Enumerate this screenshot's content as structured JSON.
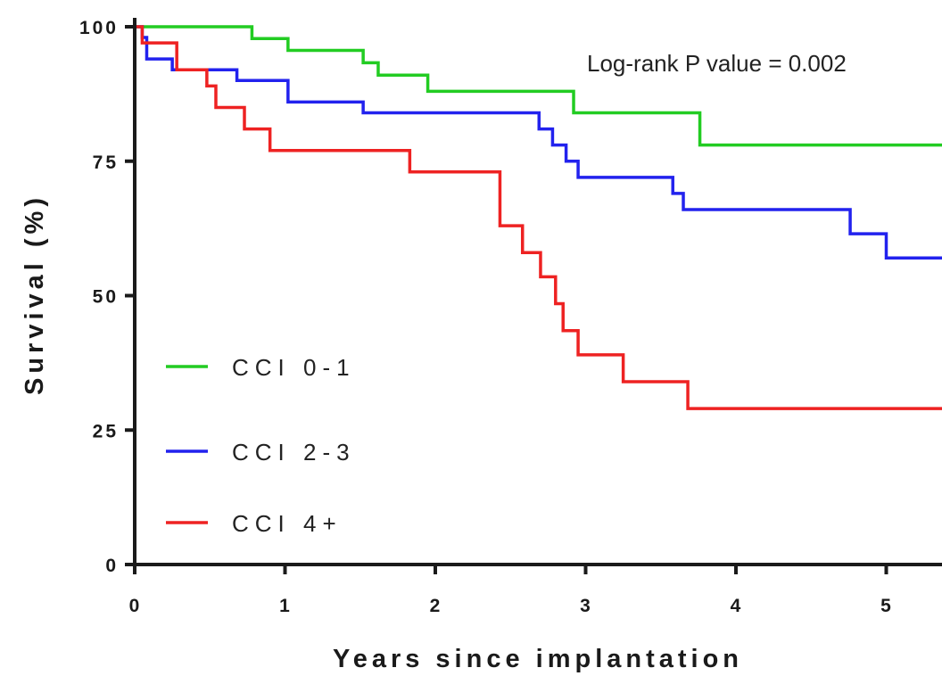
{
  "chart_data": {
    "type": "line",
    "title": "",
    "xlabel": "Years since implantation",
    "ylabel": "Survival (%)",
    "xlim": [
      0,
      5.4
    ],
    "ylim": [
      0,
      100
    ],
    "xticks": [
      "0",
      "1",
      "2",
      "3",
      "4",
      "5"
    ],
    "yticks": [
      "0",
      "25",
      "50",
      "75",
      "100"
    ],
    "annotation": "Log-rank P value = 0.002",
    "legend_position": "bottom-left",
    "series": [
      {
        "name": "CCI 0-1",
        "color": "#22cc22",
        "x": [
          0,
          0.78,
          1.02,
          1.52,
          1.62,
          1.95,
          2.92,
          3.76,
          5.4
        ],
        "y": [
          100,
          97.8,
          95.6,
          93.3,
          91.0,
          88.0,
          84.0,
          78.0,
          72.0
        ]
      },
      {
        "name": "CCI 2-3",
        "color": "#2222ee",
        "x": [
          0,
          0.05,
          0.08,
          0.25,
          0.68,
          1.02,
          1.52,
          2.69,
          2.78,
          2.87,
          2.95,
          3.58,
          3.65,
          4.76,
          5.0,
          5.4
        ],
        "y": [
          100,
          98,
          94,
          92,
          90,
          86,
          84,
          81,
          78,
          75,
          72,
          69,
          66,
          61.5,
          57,
          57
        ]
      },
      {
        "name": "CCI 4+",
        "color": "#ee2222",
        "x": [
          0,
          0.05,
          0.28,
          0.48,
          0.54,
          0.73,
          0.9,
          1.83,
          2.43,
          2.58,
          2.7,
          2.8,
          2.85,
          2.95,
          3.25,
          3.68,
          5.4
        ],
        "y": [
          100,
          97,
          92,
          89,
          85,
          81,
          77,
          73,
          63,
          58,
          53.5,
          48.5,
          43.5,
          39,
          34,
          29,
          29
        ]
      }
    ]
  }
}
